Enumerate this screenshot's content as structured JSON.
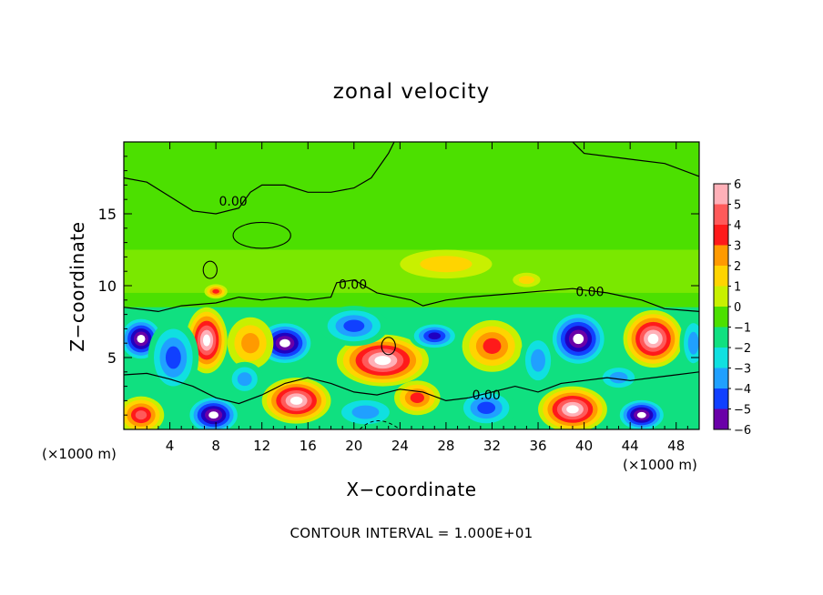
{
  "chart_data": {
    "type": "heatmap",
    "title": "zonal velocity",
    "xlabel": "X−coordinate",
    "ylabel": "Z−coordinate",
    "x_unit_left": "(×1000 m)",
    "x_unit_right": "(×1000 m)",
    "xlim": [
      0,
      50
    ],
    "ylim": [
      0,
      20
    ],
    "xticks": [
      4,
      8,
      12,
      16,
      20,
      24,
      28,
      32,
      36,
      40,
      44,
      48
    ],
    "xtick_labels": [
      "4",
      "8",
      "12",
      "16",
      "20",
      "24",
      "28",
      "32",
      "36",
      "40",
      "44",
      "48"
    ],
    "yticks": [
      5,
      10,
      15
    ],
    "ytick_labels": [
      "5",
      "10",
      "15"
    ],
    "colorbar": {
      "levels": [
        6,
        5,
        4,
        3,
        2,
        1,
        0,
        -1,
        -2,
        -3,
        -4,
        -5,
        -6
      ],
      "labels": [
        "6",
        "5",
        "4",
        "3",
        "2",
        "1",
        "0",
        "−1",
        "−2",
        "−3",
        "−4",
        "−5",
        "−6"
      ],
      "colors": [
        "#ffb0b8",
        "#ff5a5a",
        "#ff1a1a",
        "#ff9a00",
        "#ffd400",
        "#c8f000",
        "#4ce000",
        "#10e080",
        "#10e0e0",
        "#20a0ff",
        "#1040ff",
        "#2000c0",
        "#6a00a8"
      ]
    },
    "contour_labels": [
      "0.00",
      "0.00",
      "0.00",
      "0.00"
    ],
    "footer": "CONTOUR INTERVAL = 1.000E+01",
    "blobs": [
      {
        "x": 1.5,
        "z": 6.3,
        "value": -7,
        "rx": 2.0,
        "rz": 1.6
      },
      {
        "x": 7.2,
        "z": 6.2,
        "value": 7,
        "rx": 1.8,
        "rz": 2.3
      },
      {
        "x": 4.3,
        "z": 5.0,
        "value": -4,
        "rx": 2.2,
        "rz": 2.6
      },
      {
        "x": 14.0,
        "z": 6.0,
        "value": -7,
        "rx": 2.6,
        "rz": 1.6
      },
      {
        "x": 11.0,
        "z": 6.0,
        "value": 3,
        "rx": 2.0,
        "rz": 1.8
      },
      {
        "x": 22.5,
        "z": 4.8,
        "value": 7,
        "rx": 4.0,
        "rz": 1.8
      },
      {
        "x": 20.0,
        "z": 7.2,
        "value": -4,
        "rx": 3.0,
        "rz": 1.4
      },
      {
        "x": 27.0,
        "z": 6.5,
        "value": -5,
        "rx": 2.2,
        "rz": 1.0
      },
      {
        "x": 32.0,
        "z": 5.8,
        "value": 4,
        "rx": 2.6,
        "rz": 1.8
      },
      {
        "x": 39.5,
        "z": 6.3,
        "value": -7,
        "rx": 2.6,
        "rz": 2.0
      },
      {
        "x": 36.0,
        "z": 4.8,
        "value": -3,
        "rx": 1.6,
        "rz": 2.0
      },
      {
        "x": 46.0,
        "z": 6.3,
        "value": 7,
        "rx": 2.6,
        "rz": 2.0
      },
      {
        "x": 49.5,
        "z": 6.0,
        "value": -3,
        "rx": 1.2,
        "rz": 2.0
      },
      {
        "x": 1.5,
        "z": 1.0,
        "value": 5,
        "rx": 2.0,
        "rz": 1.3
      },
      {
        "x": 7.8,
        "z": 1.0,
        "value": -7,
        "rx": 2.4,
        "rz": 1.4
      },
      {
        "x": 15.0,
        "z": 2.0,
        "value": 7,
        "rx": 3.0,
        "rz": 1.6
      },
      {
        "x": 21.0,
        "z": 1.2,
        "value": -3,
        "rx": 3.0,
        "rz": 1.2
      },
      {
        "x": 25.5,
        "z": 2.2,
        "value": 4,
        "rx": 2.0,
        "rz": 1.2
      },
      {
        "x": 31.5,
        "z": 1.5,
        "value": -4,
        "rx": 2.6,
        "rz": 1.4
      },
      {
        "x": 39.0,
        "z": 1.4,
        "value": 7,
        "rx": 3.0,
        "rz": 1.6
      },
      {
        "x": 45.0,
        "z": 1.0,
        "value": -7,
        "rx": 2.2,
        "rz": 1.2
      },
      {
        "x": 10.5,
        "z": 3.5,
        "value": -3,
        "rx": 1.6,
        "rz": 1.2
      },
      {
        "x": 43.0,
        "z": 3.6,
        "value": -3,
        "rx": 2.0,
        "rz": 1.0
      },
      {
        "x": 8.0,
        "z": 9.6,
        "value": 4,
        "rx": 1.0,
        "rz": 0.5
      },
      {
        "x": 35.0,
        "z": 10.4,
        "value": 2,
        "rx": 1.2,
        "rz": 0.5
      },
      {
        "x": 28.0,
        "z": 11.5,
        "value": 1.5,
        "rx": 4.0,
        "rz": 1.0
      }
    ]
  }
}
